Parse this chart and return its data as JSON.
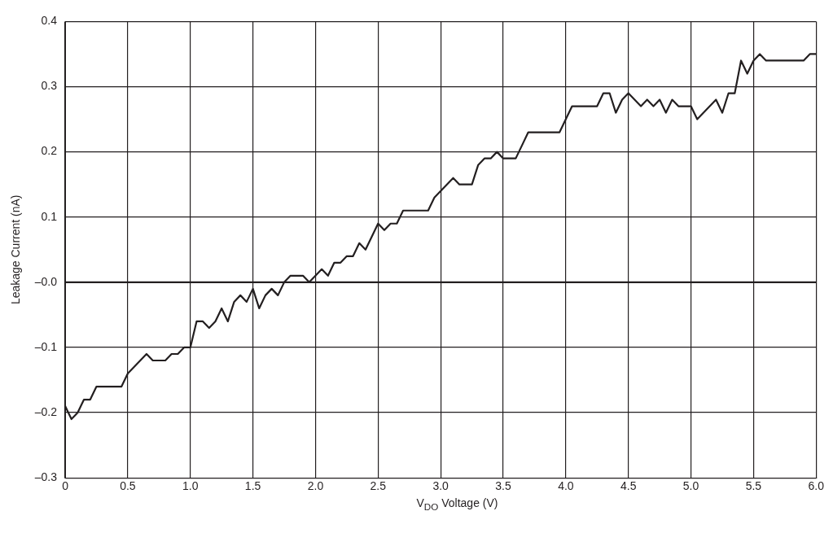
{
  "chart_data": {
    "type": "line",
    "xlabel": "V$_{DO}$ Voltage (V)",
    "ylabel": "Leakage Current (nA)",
    "x": [
      0,
      0.05,
      0.1,
      0.15,
      0.2,
      0.25,
      0.3,
      0.35,
      0.4,
      0.45,
      0.5,
      0.55,
      0.6,
      0.65,
      0.7,
      0.75,
      0.8,
      0.85,
      0.9,
      0.95,
      1.0,
      1.05,
      1.1,
      1.15,
      1.2,
      1.25,
      1.3,
      1.35,
      1.4,
      1.45,
      1.5,
      1.55,
      1.6,
      1.65,
      1.7,
      1.75,
      1.8,
      1.85,
      1.9,
      1.95,
      2.0,
      2.05,
      2.1,
      2.15,
      2.2,
      2.25,
      2.3,
      2.35,
      2.4,
      2.45,
      2.5,
      2.55,
      2.6,
      2.65,
      2.7,
      2.75,
      2.8,
      2.85,
      2.9,
      2.95,
      3.0,
      3.05,
      3.1,
      3.15,
      3.2,
      3.25,
      3.3,
      3.35,
      3.4,
      3.45,
      3.5,
      3.55,
      3.6,
      3.65,
      3.7,
      3.75,
      3.8,
      3.85,
      3.9,
      3.95,
      4.0,
      4.05,
      4.1,
      4.15,
      4.2,
      4.25,
      4.3,
      4.35,
      4.4,
      4.45,
      4.5,
      4.55,
      4.6,
      4.65,
      4.7,
      4.75,
      4.8,
      4.85,
      4.9,
      4.95,
      5.0,
      5.05,
      5.1,
      5.15,
      5.2,
      5.25,
      5.3,
      5.35,
      5.4,
      5.45,
      5.5,
      5.55,
      5.6,
      5.65,
      5.7,
      5.75,
      5.8,
      5.85,
      5.9,
      5.95,
      6.0
    ],
    "series": [
      {
        "color": "#231f20",
        "values": [
          -0.19,
          -0.21,
          -0.2,
          -0.18,
          -0.18,
          -0.16,
          -0.16,
          -0.16,
          -0.16,
          -0.16,
          -0.14,
          -0.13,
          -0.12,
          -0.11,
          -0.12,
          -0.12,
          -0.12,
          -0.11,
          -0.11,
          -0.1,
          -0.1,
          -0.06,
          -0.06,
          -0.07,
          -0.06,
          -0.04,
          -0.06,
          -0.03,
          -0.02,
          -0.03,
          -0.01,
          -0.04,
          -0.02,
          -0.01,
          -0.02,
          0,
          0.01,
          0.01,
          0.01,
          0,
          0.01,
          0.02,
          0.01,
          0.03,
          0.03,
          0.04,
          0.04,
          0.06,
          0.05,
          0.07,
          0.09,
          0.08,
          0.09,
          0.09,
          0.11,
          0.11,
          0.11,
          0.11,
          0.11,
          0.13,
          0.14,
          0.15,
          0.16,
          0.15,
          0.15,
          0.15,
          0.18,
          0.19,
          0.19,
          0.2,
          0.19,
          0.19,
          0.19,
          0.21,
          0.23,
          0.23,
          0.23,
          0.23,
          0.23,
          0.23,
          0.25,
          0.27,
          0.27,
          0.27,
          0.27,
          0.27,
          0.29,
          0.29,
          0.26,
          0.28,
          0.29,
          0.28,
          0.27,
          0.28,
          0.27,
          0.28,
          0.26,
          0.28,
          0.27,
          0.27,
          0.27,
          0.25,
          0.26,
          0.27,
          0.28,
          0.26,
          0.29,
          0.29,
          0.34,
          0.32,
          0.34,
          0.35,
          0.34,
          0.34,
          0.34,
          0.34,
          0.34,
          0.34,
          0.34,
          0.35,
          0.35
        ]
      }
    ],
    "xlim": [
      0,
      6
    ],
    "xticks": [
      0,
      0.5,
      {
        "value": 1,
        "label": "1.0"
      },
      1.5,
      {
        "value": 2,
        "label": "2.0"
      },
      2.5,
      {
        "value": 3,
        "label": "3.0"
      },
      3.5,
      {
        "value": 4,
        "label": "4.0"
      },
      4.5,
      {
        "value": 5,
        "label": "5.0"
      },
      5.5,
      {
        "value": 6,
        "label": "6.0"
      }
    ],
    "ylim": [
      -0.3,
      0.4
    ],
    "yticks": [
      {
        "value": -0.3,
        "label": "–0.3"
      },
      {
        "value": -0.2,
        "label": "–0.2"
      },
      {
        "value": -0.1,
        "label": "–0.1"
      },
      {
        "value": 0,
        "label": "–0.0"
      },
      0.1,
      0.2,
      0.3,
      0.4
    ],
    "ref_lines": [
      {
        "axis": "y",
        "value": 0,
        "color": "#231f20"
      }
    ],
    "grid": true,
    "legend": false,
    "marker": "none",
    "line_style": "solid"
  }
}
